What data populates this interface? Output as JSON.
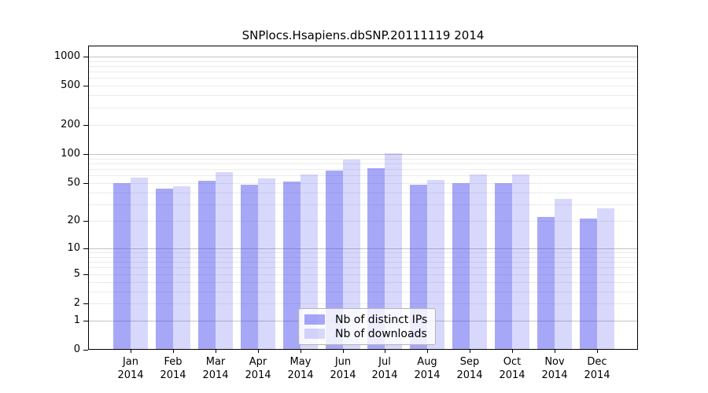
{
  "chart_data": {
    "type": "bar",
    "title": "SNPlocs.Hsapiens.dbSNP.20111119 2014",
    "categories": [
      "Jan 2014",
      "Feb 2014",
      "Mar 2014",
      "Apr 2014",
      "May 2014",
      "Jun 2014",
      "Jul 2014",
      "Aug 2014",
      "Sep 2014",
      "Oct 2014",
      "Nov 2014",
      "Dec 2014"
    ],
    "series": [
      {
        "name": "Nb of distinct IPs",
        "key": "distinct-ips",
        "values": [
          50,
          44,
          53,
          48,
          52,
          68,
          71,
          48,
          50,
          50,
          22,
          21
        ],
        "color_hex": "#4545f0",
        "fill_opacity": 0.47,
        "rendered_hex": "#a8a8f8"
      },
      {
        "name": "Nb of downloads",
        "key": "downloads",
        "values": [
          57,
          46,
          65,
          56,
          62,
          87,
          102,
          54,
          61,
          61,
          34,
          27
        ],
        "color_hex": "#4545f0",
        "fill_opacity": 0.21,
        "rendered_hex": "#d8d8fa"
      }
    ],
    "y_axis": {
      "scale": "log10(value+1)",
      "tick_values": [
        0,
        1,
        2,
        5,
        10,
        20,
        50,
        100,
        200,
        500,
        1000
      ],
      "tick_labels": [
        "0",
        "1",
        "2",
        "5",
        "10",
        "20",
        "50",
        "100",
        "200",
        "500",
        "1000"
      ],
      "major_gridlines": [
        1,
        10,
        100,
        1000
      ],
      "minor_gridlines": [
        2,
        3,
        4,
        5,
        6,
        7,
        8,
        9,
        20,
        30,
        40,
        50,
        60,
        70,
        80,
        90,
        200,
        300,
        400,
        500,
        600,
        700,
        800,
        900
      ],
      "ylim": [
        0,
        1200
      ],
      "grid": true
    },
    "x_axis": {
      "tick_per_category": true
    },
    "legend": {
      "position": "inside-bottom-center",
      "entries": [
        "Nb of distinct IPs",
        "Nb of downloads"
      ]
    }
  },
  "colors": {
    "background": "#ffffff",
    "axis_spine": "#000000",
    "major_grid": "#c3c3c3",
    "minor_grid": "#ebebeb",
    "legend_border": "#b3b3b3",
    "text": "#000000"
  }
}
